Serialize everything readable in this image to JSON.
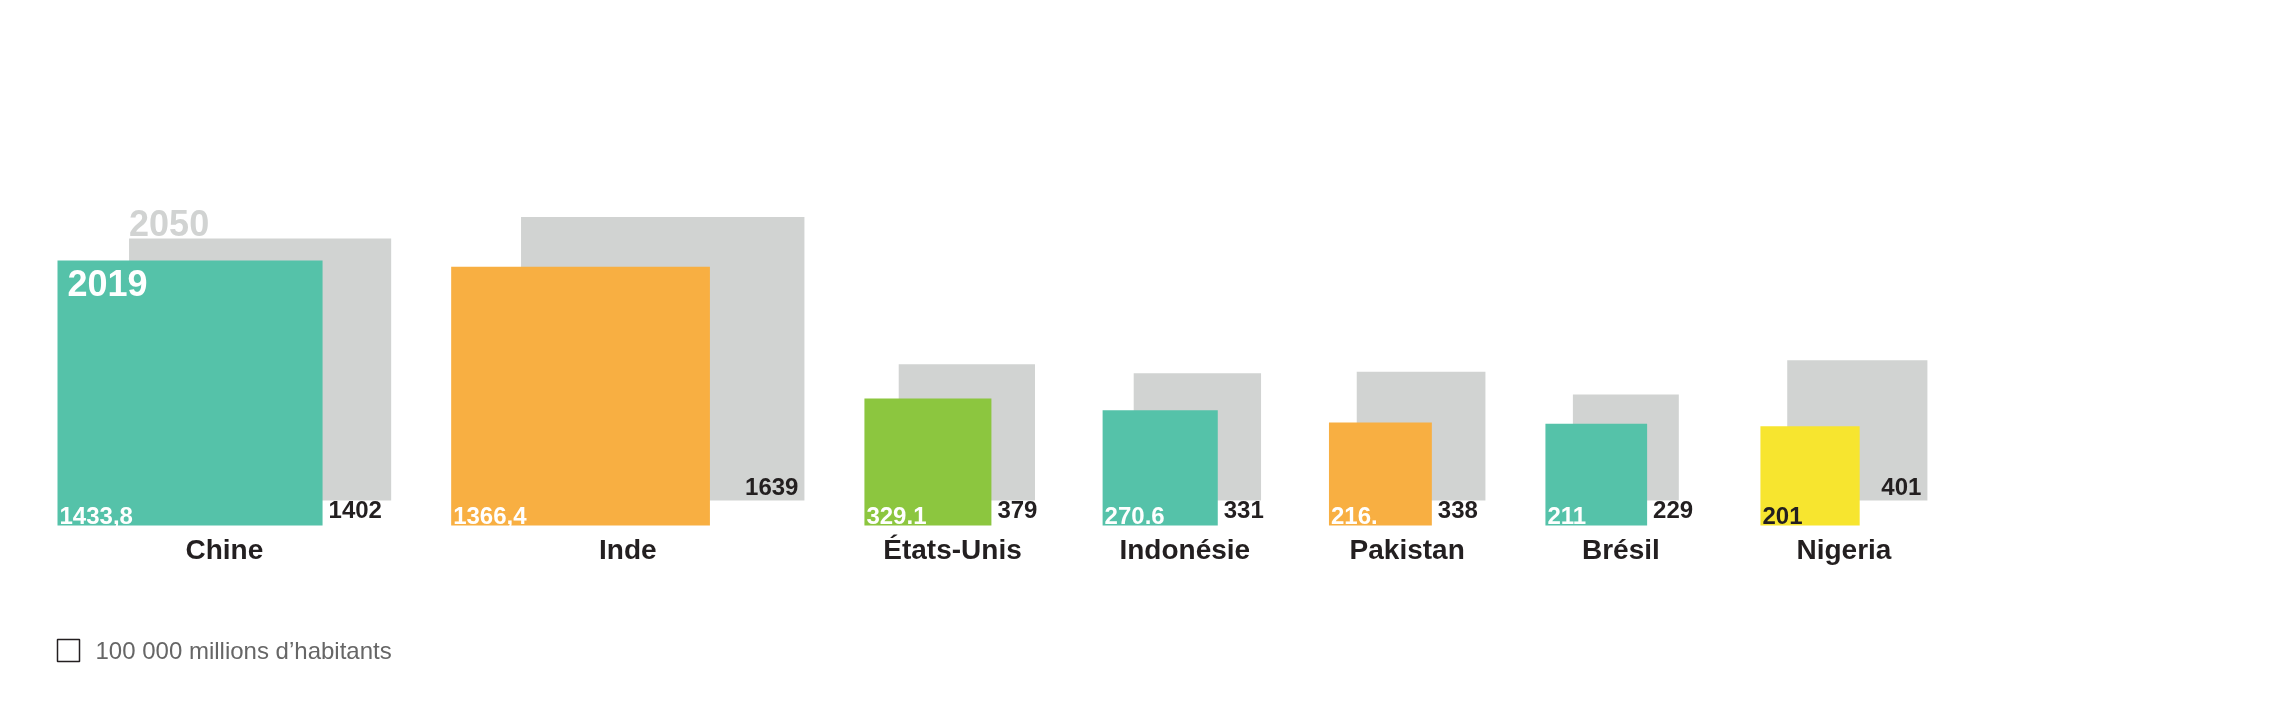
{
  "chart_data": {
    "type": "other",
    "categories": [
      "Chine",
      "Inde",
      "États-Unis",
      "Indonésie",
      "Pakistan",
      "Brésil",
      "Nigeria"
    ],
    "series": [
      {
        "name": "2019",
        "colors": [
          "#55c2a9",
          "#f8af42",
          "#8cc63f",
          "#55c2a9",
          "#f8af42",
          "#55c2a9",
          "#f7e52f"
        ],
        "values": [
          1433.8,
          1366.4,
          329.1,
          270.6,
          216,
          211,
          201
        ],
        "value_labels": [
          "1433,8",
          "1366,4",
          "329.1",
          "270.6",
          "216.",
          "211",
          "201"
        ]
      },
      {
        "name": "2050",
        "color": "#d1d3d2",
        "values": [
          1402,
          1639,
          379,
          331,
          338,
          229,
          401
        ],
        "value_labels": [
          "1402",
          "1639",
          "379",
          "331",
          "338",
          "229",
          "401"
        ]
      }
    ],
    "annotations": [
      "100 000 millions d’habitants"
    ]
  }
}
